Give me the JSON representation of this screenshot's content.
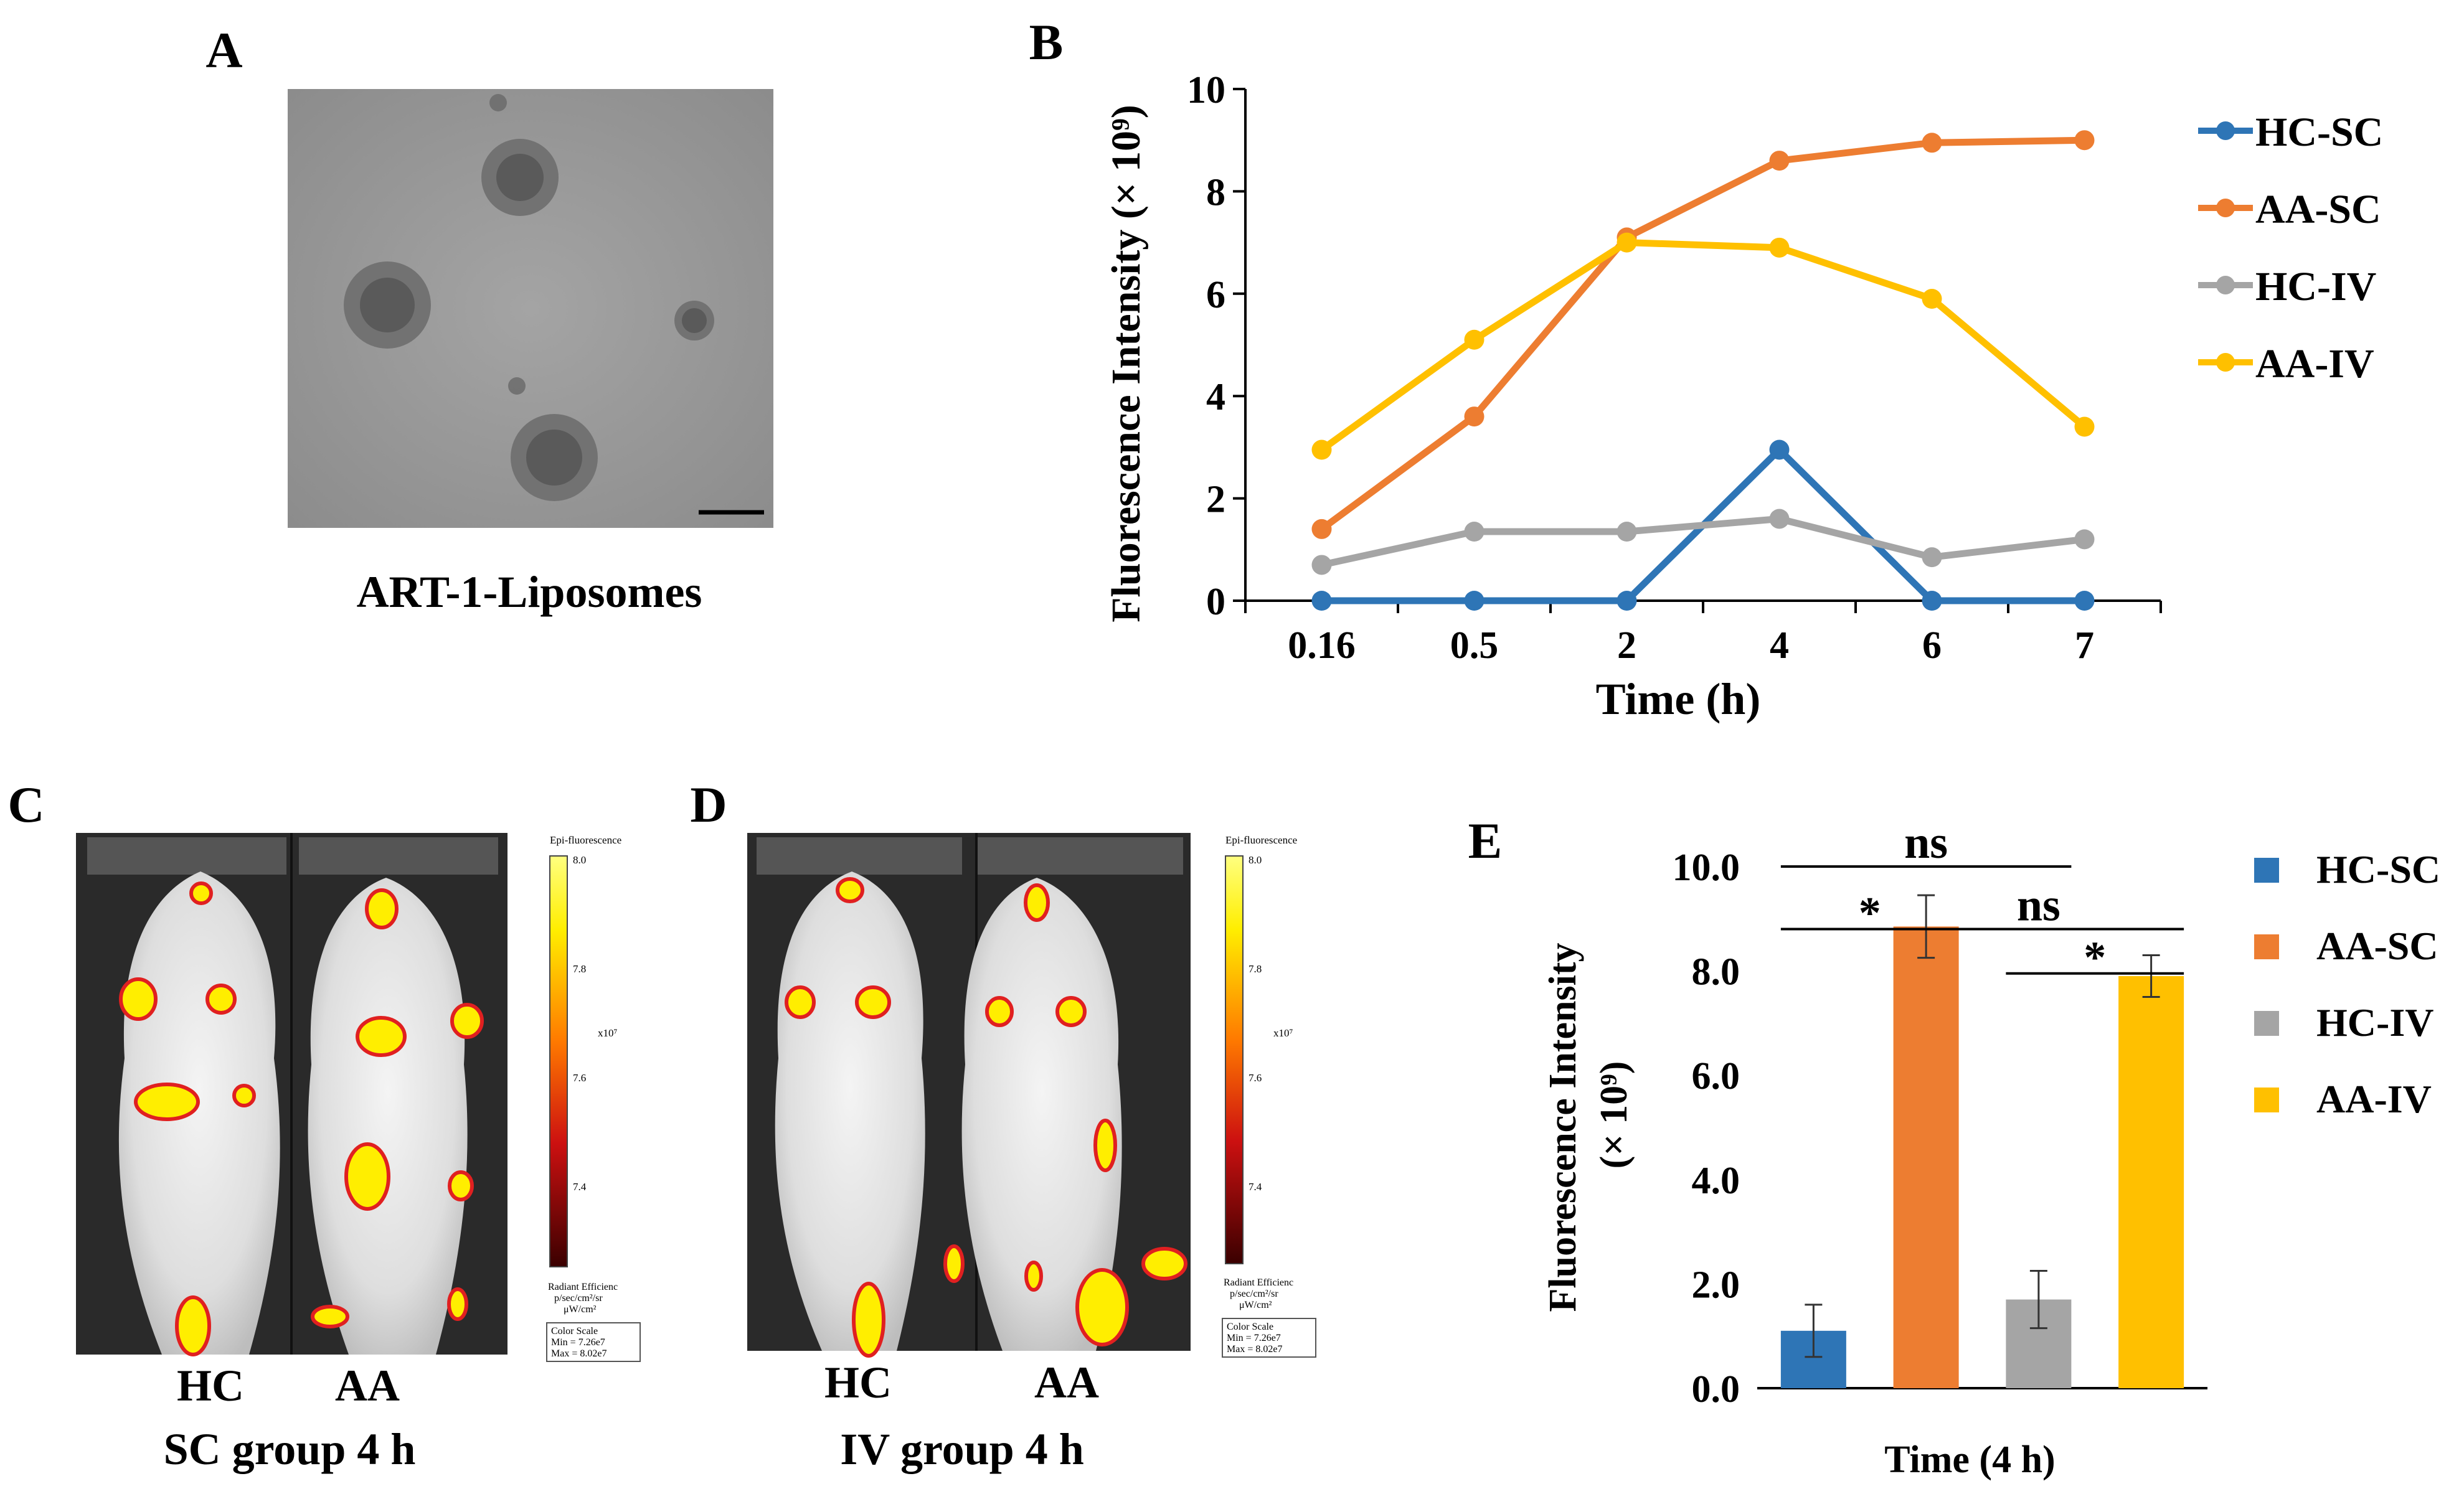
{
  "panels": {
    "a": {
      "letter": "A",
      "caption": "ART-1-Liposomes"
    },
    "b": {
      "letter": "B"
    },
    "c": {
      "letter": "C",
      "left_label": "HC",
      "right_label": "AA",
      "caption": "SC group 4 h",
      "scale": {
        "title": "Epi-fluorescence",
        "ticks": [
          "8.0",
          "7.8",
          "7.6",
          "7.4"
        ],
        "exponent": "x10⁷",
        "unit_line1": "Radiant Efficienc",
        "unit_line2": "p/sec/cm²/sr",
        "unit_line3": "μW/cm²",
        "box_line1": "Color Scale",
        "box_line2": "Min = 7.26e7",
        "box_line3": "Max = 8.02e7"
      }
    },
    "d": {
      "letter": "D",
      "left_label": "HC",
      "right_label": "AA",
      "caption": "IV group 4 h",
      "scale": {
        "title": "Epi-fluorescence",
        "ticks": [
          "8.0",
          "7.8",
          "7.6",
          "7.4"
        ],
        "exponent": "x10⁷",
        "unit_line1": "Radiant Efficienc",
        "unit_line2": "p/sec/cm²/sr",
        "unit_line3": "μW/cm²",
        "box_line1": "Color Scale",
        "box_line2": "Min = 7.26e7",
        "box_line3": "Max = 8.02e7"
      }
    },
    "e": {
      "letter": "E"
    }
  },
  "colors": {
    "hc_sc": "#2e75b6",
    "aa_sc": "#ed7d31",
    "hc_iv": "#a5a5a5",
    "aa_iv": "#ffc000"
  },
  "chart_data": [
    {
      "panel": "B",
      "type": "line",
      "title": "",
      "xlabel": "Time (h)",
      "ylabel": "Fluorescence Intensity (× 10⁹)",
      "categories": [
        "0.16",
        "0.5",
        "2",
        "4",
        "6",
        "7"
      ],
      "ylim": [
        0,
        10
      ],
      "yticks": [
        "0",
        "2",
        "4",
        "6",
        "8",
        "10"
      ],
      "grid": false,
      "legend": "right",
      "series": [
        {
          "name": "HC-SC",
          "values": [
            0,
            0,
            0,
            2.95,
            0,
            0
          ]
        },
        {
          "name": "AA-SC",
          "values": [
            1.4,
            3.6,
            7.1,
            8.6,
            8.95,
            9.0
          ]
        },
        {
          "name": "HC-IV",
          "values": [
            0.7,
            1.35,
            1.35,
            1.6,
            0.85,
            1.2
          ]
        },
        {
          "name": "AA-IV",
          "values": [
            2.95,
            5.1,
            7.0,
            6.9,
            5.9,
            3.4
          ]
        }
      ]
    },
    {
      "panel": "E",
      "type": "bar",
      "title": "",
      "xlabel": "Time (4 h)",
      "ylabel_line1": "Fluorescence Intensity",
      "ylabel_line2": "(× 10⁹)",
      "categories": [
        "HC-SC",
        "AA-SC",
        "HC-IV",
        "AA-IV"
      ],
      "values": [
        1.1,
        8.85,
        1.7,
        7.9
      ],
      "errors": [
        0.5,
        0.6,
        0.55,
        0.4
      ],
      "ylim": [
        0,
        10
      ],
      "yticks": [
        "0.0",
        "2.0",
        "4.0",
        "6.0",
        "8.0",
        "10.0"
      ],
      "grid": false,
      "legend": "right",
      "annotations": [
        {
          "text": "ns",
          "from": "HC-SC",
          "to": "HC-IV",
          "level": 10.0
        },
        {
          "text": "*",
          "from": "HC-SC",
          "to": "AA-SC",
          "level": 8.8
        },
        {
          "text": "ns",
          "from": "AA-SC",
          "to": "AA-IV",
          "level": 8.8
        },
        {
          "text": "*",
          "from": "HC-IV",
          "to": "AA-IV",
          "level": 7.95
        }
      ]
    }
  ]
}
